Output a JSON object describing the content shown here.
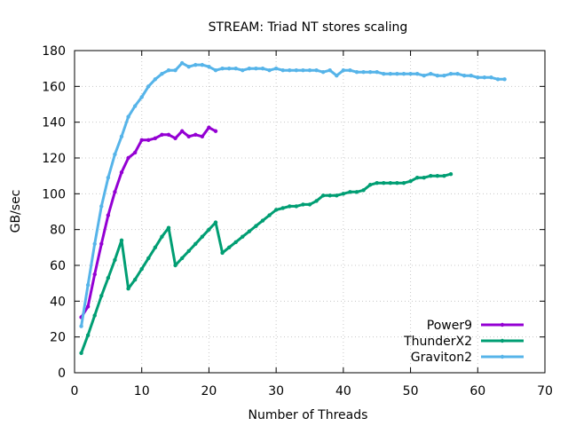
{
  "chart_data": {
    "type": "line",
    "title": "STREAM: Triad NT stores scaling",
    "xlabel": "Number of Threads",
    "ylabel": "GB/sec",
    "xlim": [
      0,
      70
    ],
    "ylim": [
      0,
      180
    ],
    "xticks": [
      0,
      10,
      20,
      30,
      40,
      50,
      60,
      70
    ],
    "yticks": [
      0,
      20,
      40,
      60,
      80,
      100,
      120,
      140,
      160,
      180
    ],
    "grid": true,
    "legend_position": "bottom-right",
    "series": [
      {
        "name": "Power9",
        "color": "#9400d3",
        "x": [
          1,
          2,
          3,
          4,
          5,
          6,
          7,
          8,
          9,
          10,
          11,
          12,
          13,
          14,
          15,
          16,
          17,
          18,
          19,
          20,
          21
        ],
        "y": [
          31,
          37,
          55,
          72,
          88,
          101,
          112,
          120,
          123,
          130,
          130,
          131,
          133,
          133,
          131,
          135,
          132,
          133,
          132,
          137,
          135
        ]
      },
      {
        "name": "ThunderX2",
        "color": "#009e73",
        "x": [
          1,
          2,
          3,
          4,
          5,
          6,
          7,
          8,
          9,
          10,
          11,
          12,
          13,
          14,
          15,
          16,
          17,
          18,
          19,
          20,
          21,
          22,
          23,
          24,
          25,
          26,
          27,
          28,
          29,
          30,
          31,
          32,
          33,
          34,
          35,
          36,
          37,
          38,
          39,
          40,
          41,
          42,
          43,
          44,
          45,
          46,
          47,
          48,
          49,
          50,
          51,
          52,
          53,
          54,
          55,
          56
        ],
        "y": [
          11,
          21,
          32,
          43,
          53,
          63,
          74,
          47,
          52,
          58,
          64,
          70,
          76,
          81,
          60,
          64,
          68,
          72,
          76,
          80,
          84,
          67,
          70,
          73,
          76,
          79,
          82,
          85,
          88,
          91,
          92,
          93,
          93,
          94,
          94,
          96,
          99,
          99,
          99,
          100,
          101,
          101,
          102,
          105,
          106,
          106,
          106,
          106,
          106,
          107,
          109,
          109,
          110,
          110,
          110,
          111
        ]
      },
      {
        "name": "Graviton2",
        "color": "#56b4e9",
        "x": [
          1,
          2,
          3,
          4,
          5,
          6,
          7,
          8,
          9,
          10,
          11,
          12,
          13,
          14,
          15,
          16,
          17,
          18,
          19,
          20,
          21,
          22,
          23,
          24,
          25,
          26,
          27,
          28,
          29,
          30,
          31,
          32,
          33,
          34,
          35,
          36,
          37,
          38,
          39,
          40,
          41,
          42,
          43,
          44,
          45,
          46,
          47,
          48,
          49,
          50,
          51,
          52,
          53,
          54,
          55,
          56,
          57,
          58,
          59,
          60,
          61,
          62,
          63,
          64
        ],
        "y": [
          26,
          49,
          72,
          93,
          109,
          122,
          132,
          143,
          149,
          154,
          160,
          164,
          167,
          169,
          169,
          173,
          171,
          172,
          172,
          171,
          169,
          170,
          170,
          170,
          169,
          170,
          170,
          170,
          169,
          170,
          169,
          169,
          169,
          169,
          169,
          169,
          168,
          169,
          166,
          169,
          169,
          168,
          168,
          168,
          168,
          167,
          167,
          167,
          167,
          167,
          167,
          166,
          167,
          166,
          166,
          167,
          167,
          166,
          166,
          165,
          165,
          165,
          164,
          164
        ]
      }
    ]
  }
}
